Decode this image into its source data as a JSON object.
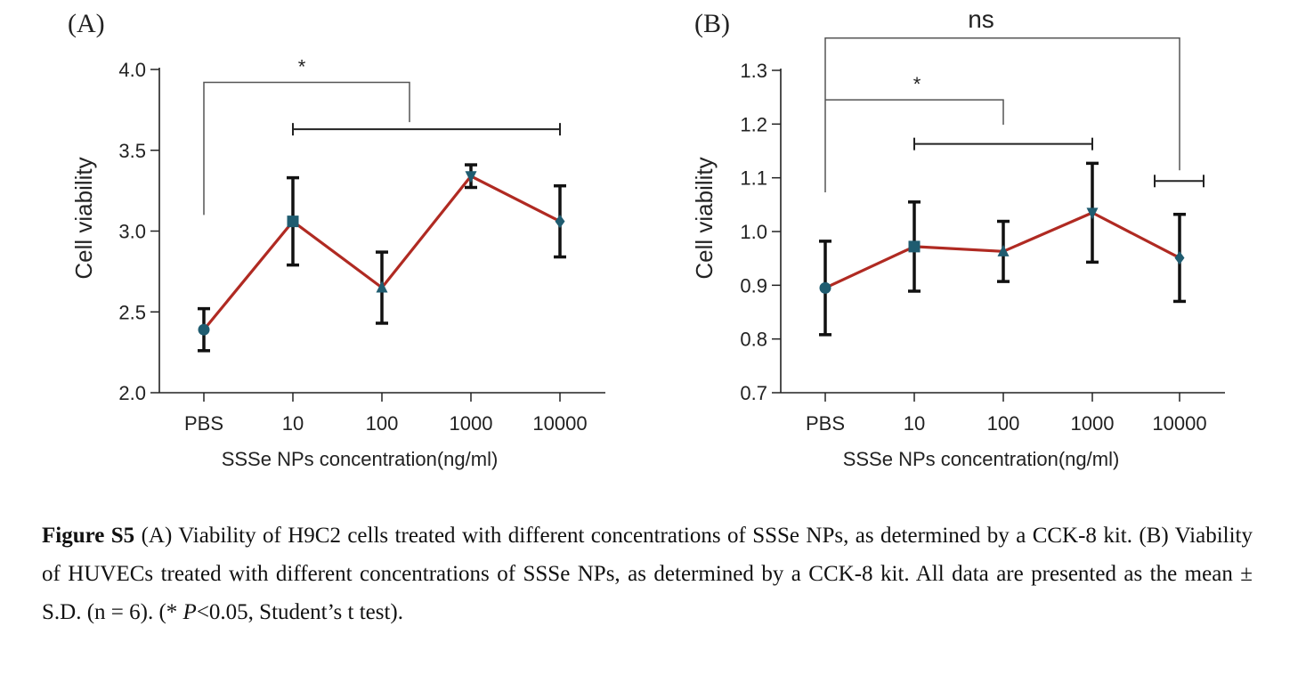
{
  "colors": {
    "line": "#b02a22",
    "marker": "#1f5c70",
    "axis": "#222222",
    "text": "#222222"
  },
  "chart_data": [
    {
      "panel": "(A)",
      "type": "line",
      "categories": [
        "PBS",
        "10",
        "100",
        "1000",
        "10000"
      ],
      "values": [
        2.39,
        3.06,
        2.65,
        3.34,
        3.06
      ],
      "errors": [
        0.13,
        0.27,
        0.22,
        0.07,
        0.22
      ],
      "markers": [
        "circle",
        "square",
        "triangle-up",
        "triangle-down",
        "diamond"
      ],
      "xlabel": "SSSe NPs concentration(ng/ml)",
      "ylabel": "Cell viability",
      "ylim": [
        2.0,
        4.0
      ],
      "yticks": [
        "2.0",
        "2.5",
        "3.0",
        "3.5",
        "4.0"
      ],
      "significance": [
        {
          "label": "*",
          "from": "PBS",
          "to": "10-10000 group",
          "left_drop_to": 3.1,
          "y": 3.92
        }
      ],
      "group_bracket": {
        "from": "10",
        "to": "10000",
        "y": 3.63
      }
    },
    {
      "panel": "(B)",
      "type": "line",
      "categories": [
        "PBS",
        "10",
        "100",
        "1000",
        "10000"
      ],
      "values": [
        0.895,
        0.972,
        0.963,
        1.035,
        0.951
      ],
      "errors": [
        0.087,
        0.083,
        0.056,
        0.092,
        0.081
      ],
      "markers": [
        "circle",
        "square",
        "triangle-up",
        "triangle-down",
        "diamond"
      ],
      "xlabel": "SSSe NPs concentration(ng/ml)",
      "ylabel": "Cell viability",
      "ylim": [
        0.7,
        1.3
      ],
      "yticks": [
        "0.7",
        "0.8",
        "0.9",
        "1.0",
        "1.1",
        "1.2",
        "1.3"
      ],
      "significance": [
        {
          "label": "ns",
          "from": "PBS",
          "to": "10000",
          "y": 1.36
        },
        {
          "label": "*",
          "from": "PBS",
          "to": "100",
          "y": 1.245
        }
      ],
      "group_brackets": [
        {
          "from": "10",
          "to": "1000",
          "y": 1.163
        },
        {
          "from": "10000-left",
          "to": "10000-right",
          "y": 1.094
        }
      ]
    }
  ],
  "caption": {
    "label": "Figure S5",
    "text_1": " (A) Viability of H9C2 cells treated with different concentrations of SSSe NPs, as determined by a CCK-8 kit. (B) Viability of HUVECs treated with different concentrations of SSSe NPs, as determined by a CCK-8 kit. All data are presented as the mean ± S.D. (n = 6). (* ",
    "p_italic": "P",
    "text_2": "<0.05, Student’s t test)."
  }
}
